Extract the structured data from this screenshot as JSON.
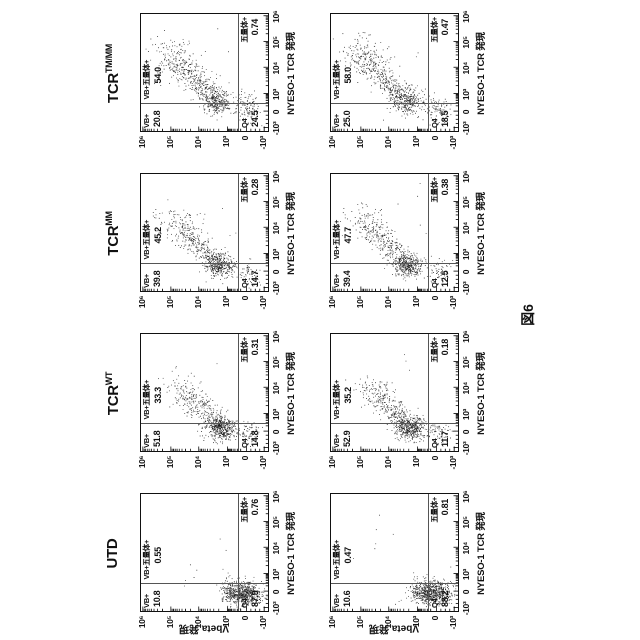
{
  "chart_data": {
    "type": "scatter",
    "title": "図6",
    "xlabel": "NYESO-1 TCR 発現",
    "ylabel": "Vbeta 発現",
    "x_tick_labels": [
      "-10³",
      "0",
      "10³",
      "10⁴",
      "10⁵",
      "10⁶"
    ],
    "y_tick_labels": [
      "-10³",
      "0",
      "10³",
      "10⁴",
      "10⁵",
      "10⁶"
    ],
    "tick_positions": [
      0.03,
      0.17,
      0.32,
      0.545,
      0.765,
      0.985
    ],
    "gate_x": 0.235,
    "gate_y": 0.235,
    "legend_position": "none",
    "grid": false,
    "rows": 2,
    "columns": [
      {
        "label": "UTD",
        "sup": ""
      },
      {
        "label": "TCR",
        "sup": "WT"
      },
      {
        "label": "TCR",
        "sup": "MM"
      },
      {
        "label": "TCR",
        "sup": "TM/MM"
      }
    ],
    "quadrant_labels": {
      "q_vb": "VB+",
      "q_double": "VB+五量体+",
      "q_pent": "五量体+",
      "q4": "Q4"
    },
    "plots": [
      {
        "row": 0,
        "col": 0,
        "condition": "UTD",
        "q_vb": "10.8",
        "q_double": "0.55",
        "q_pent": "0.76",
        "q4": "87.9",
        "clusters": [
          {
            "t": "blob",
            "x": 0.145,
            "y": 0.2,
            "sx": 0.048,
            "sy": 0.075,
            "n": 620
          },
          {
            "t": "blob",
            "x": 0.19,
            "y": 0.3,
            "sx": 0.05,
            "sy": 0.04,
            "n": 70
          },
          {
            "t": "blob",
            "x": 0.45,
            "y": 0.45,
            "sx": 0.28,
            "sy": 0.22,
            "n": 10
          }
        ]
      },
      {
        "row": 0,
        "col": 1,
        "condition": "TCR^WT",
        "q_vb": "51.8",
        "q_double": "33.3",
        "q_pent": "0.31",
        "q4": "14.8",
        "clusters": [
          {
            "t": "blob",
            "x": 0.19,
            "y": 0.37,
            "sx": 0.05,
            "sy": 0.062,
            "n": 430
          },
          {
            "t": "band",
            "x0": 0.22,
            "y0": 0.41,
            "x1": 0.56,
            "y1": 0.7,
            "s": 0.055,
            "n": 290
          },
          {
            "t": "blob",
            "x": 0.15,
            "y": 0.16,
            "sx": 0.05,
            "sy": 0.045,
            "n": 80
          },
          {
            "t": "blob",
            "x": 0.5,
            "y": 0.55,
            "sx": 0.25,
            "sy": 0.2,
            "n": 8
          }
        ]
      },
      {
        "row": 0,
        "col": 2,
        "condition": "TCR^MM",
        "q_vb": "39.8",
        "q_double": "45.2",
        "q_pent": "0.28",
        "q4": "14.7",
        "clusters": [
          {
            "t": "blob",
            "x": 0.215,
            "y": 0.385,
            "sx": 0.05,
            "sy": 0.06,
            "n": 360
          },
          {
            "t": "band",
            "x0": 0.25,
            "y0": 0.43,
            "x1": 0.63,
            "y1": 0.76,
            "s": 0.058,
            "n": 330
          },
          {
            "t": "blob",
            "x": 0.16,
            "y": 0.16,
            "sx": 0.05,
            "sy": 0.045,
            "n": 60
          },
          {
            "t": "blob",
            "x": 0.5,
            "y": 0.55,
            "sx": 0.25,
            "sy": 0.2,
            "n": 8
          }
        ]
      },
      {
        "row": 0,
        "col": 3,
        "condition": "TCR^TM/MM",
        "q_vb": "20.8",
        "q_double": "54.0",
        "q_pent": "0.74",
        "q4": "24.5",
        "clusters": [
          {
            "t": "blob",
            "x": 0.245,
            "y": 0.4,
            "sx": 0.055,
            "sy": 0.06,
            "n": 290
          },
          {
            "t": "band",
            "x0": 0.28,
            "y0": 0.44,
            "x1": 0.7,
            "y1": 0.8,
            "s": 0.062,
            "n": 430
          },
          {
            "t": "blob",
            "x": 0.19,
            "y": 0.16,
            "sx": 0.06,
            "sy": 0.05,
            "n": 120
          },
          {
            "t": "blob",
            "x": 0.55,
            "y": 0.55,
            "sx": 0.22,
            "sy": 0.2,
            "n": 8
          }
        ]
      },
      {
        "row": 1,
        "col": 0,
        "condition": "UTD",
        "q_vb": "10.6",
        "q_double": "0.47",
        "q_pent": "0.81",
        "q4": "88.2",
        "clusters": [
          {
            "t": "blob",
            "x": 0.15,
            "y": 0.205,
            "sx": 0.05,
            "sy": 0.075,
            "n": 630
          },
          {
            "t": "blob",
            "x": 0.19,
            "y": 0.31,
            "sx": 0.05,
            "sy": 0.04,
            "n": 60
          },
          {
            "t": "blob",
            "x": 0.45,
            "y": 0.45,
            "sx": 0.28,
            "sy": 0.22,
            "n": 10
          }
        ]
      },
      {
        "row": 1,
        "col": 1,
        "condition": "TCR^WT",
        "q_vb": "52.9",
        "q_double": "35.2",
        "q_pent": "0.18",
        "q4": "11.7",
        "clusters": [
          {
            "t": "blob",
            "x": 0.19,
            "y": 0.375,
            "sx": 0.05,
            "sy": 0.062,
            "n": 440
          },
          {
            "t": "band",
            "x0": 0.22,
            "y0": 0.42,
            "x1": 0.57,
            "y1": 0.71,
            "s": 0.056,
            "n": 300
          },
          {
            "t": "blob",
            "x": 0.15,
            "y": 0.155,
            "sx": 0.05,
            "sy": 0.045,
            "n": 65
          },
          {
            "t": "blob",
            "x": 0.5,
            "y": 0.55,
            "sx": 0.25,
            "sy": 0.2,
            "n": 8
          }
        ]
      },
      {
        "row": 1,
        "col": 2,
        "condition": "TCR^MM",
        "q_vb": "39.4",
        "q_double": "47.7",
        "q_pent": "0.38",
        "q4": "12.5",
        "clusters": [
          {
            "t": "blob",
            "x": 0.21,
            "y": 0.39,
            "sx": 0.05,
            "sy": 0.06,
            "n": 350
          },
          {
            "t": "band",
            "x0": 0.25,
            "y0": 0.43,
            "x1": 0.64,
            "y1": 0.77,
            "s": 0.06,
            "n": 345
          },
          {
            "t": "blob",
            "x": 0.16,
            "y": 0.155,
            "sx": 0.05,
            "sy": 0.045,
            "n": 55
          },
          {
            "t": "blob",
            "x": 0.5,
            "y": 0.55,
            "sx": 0.25,
            "sy": 0.2,
            "n": 8
          }
        ]
      },
      {
        "row": 1,
        "col": 3,
        "condition": "TCR^TM/MM",
        "q_vb": "25.0",
        "q_double": "58.0",
        "q_pent": "0.47",
        "q4": "18.5",
        "clusters": [
          {
            "t": "blob",
            "x": 0.25,
            "y": 0.41,
            "sx": 0.055,
            "sy": 0.06,
            "n": 280
          },
          {
            "t": "band",
            "x0": 0.29,
            "y0": 0.45,
            "x1": 0.71,
            "y1": 0.81,
            "s": 0.064,
            "n": 450
          },
          {
            "t": "blob",
            "x": 0.19,
            "y": 0.165,
            "sx": 0.06,
            "sy": 0.05,
            "n": 100
          },
          {
            "t": "blob",
            "x": 0.55,
            "y": 0.55,
            "sx": 0.22,
            "sy": 0.2,
            "n": 8
          }
        ]
      }
    ]
  }
}
